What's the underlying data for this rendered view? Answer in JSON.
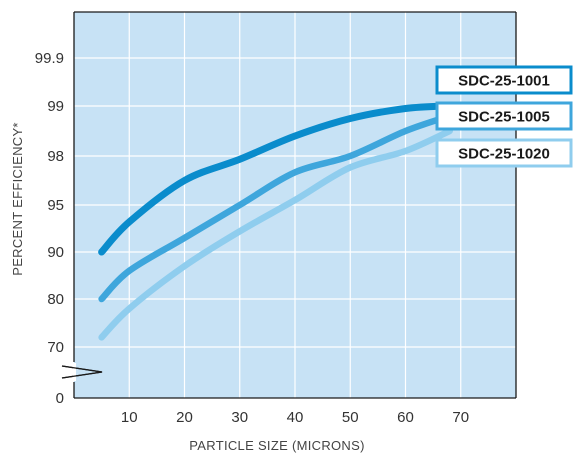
{
  "chart_data": {
    "type": "line",
    "xlabel": "PARTICLE SIZE (MICRONS)",
    "ylabel": "PERCENT EFFICIENCY*",
    "x_ticks": [
      "10",
      "20",
      "30",
      "40",
      "50",
      "60",
      "70"
    ],
    "y_ticks": [
      "0",
      "70",
      "80",
      "90",
      "95",
      "98",
      "99",
      "99.9"
    ],
    "xlim": [
      0,
      80
    ],
    "y_scale": "categorical (non-linear): 0, 70, 80, 90, 95, 98, 99, 99.9, with axis break between 0 and 70",
    "grid": true,
    "legend_position": "right",
    "series": [
      {
        "name": "SDC-25-1001",
        "color": "#0a8ccc",
        "x": [
          5,
          10,
          20,
          30,
          40,
          50,
          60,
          68
        ],
        "y": [
          90,
          93.2,
          96.5,
          97.8,
          98.4,
          98.75,
          98.95,
          99
        ]
      },
      {
        "name": "SDC-25-1005",
        "color": "#3ea6dc",
        "x": [
          5,
          10,
          20,
          30,
          40,
          50,
          60,
          68
        ],
        "y": [
          80,
          86,
          91.5,
          95,
          97,
          98,
          98.5,
          98.8
        ]
      },
      {
        "name": "SDC-25-1020",
        "color": "#8fcdee",
        "x": [
          5,
          10,
          20,
          30,
          40,
          50,
          60,
          68
        ],
        "y": [
          72,
          78,
          87,
          92.2,
          95.3,
          97.3,
          98.1,
          98.5
        ]
      }
    ]
  },
  "colors": {
    "plot_bg": "#c7e2f5",
    "grid": "#ffffff",
    "frame": "#1a1a1a",
    "legend_border": "#0a8ccc"
  }
}
